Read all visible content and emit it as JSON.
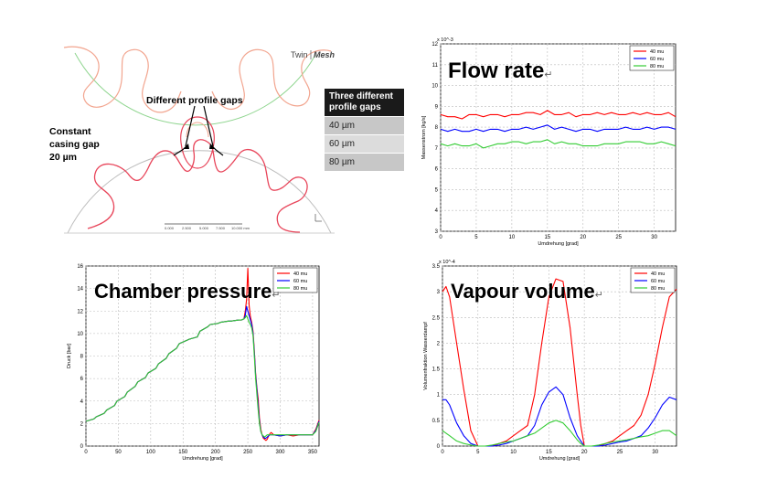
{
  "profile_panel": {
    "logo_twin": "Twin",
    "logo_mesh": "Mesh",
    "label_profile_gaps": "Different profile gaps",
    "label_casing_gap_1": "Constant",
    "label_casing_gap_2": "casing gap",
    "label_casing_gap_3": "20 µm",
    "table_header_1": "Three different",
    "table_header_2": "profile gaps",
    "table_rows": [
      "40 µm",
      "60 µm",
      "80 µm"
    ],
    "scale_labels": [
      "0.000",
      "2.500",
      "5.000",
      "7.500",
      "10.000 mm"
    ]
  },
  "titles": {
    "flow_rate": "Flow rate",
    "chamber_pressure": "Chamber pressure",
    "vapour_volume": "Vapour volume",
    "para_mark": "↵"
  },
  "colors": {
    "s40": "#ff0000",
    "s60": "#0000ff",
    "s80": "#33cc33"
  },
  "chart_data": [
    {
      "id": "flow",
      "type": "line",
      "title": "Flow rate",
      "xlabel": "Umdrehung [grad]",
      "ylabel": "Massenstrom [kg/s]",
      "exponent": "x 10^-3",
      "xlim": [
        0,
        33
      ],
      "ylim": [
        3,
        12
      ],
      "xticks": [
        0,
        5,
        10,
        15,
        20,
        25,
        30
      ],
      "yticks": [
        3,
        4,
        5,
        6,
        7,
        8,
        9,
        10,
        11,
        12
      ],
      "legend": "top-right",
      "series": [
        {
          "name": "40 mu",
          "x": [
            0,
            1,
            2,
            3,
            4,
            5,
            6,
            7,
            8,
            9,
            10,
            11,
            12,
            13,
            14,
            15,
            16,
            17,
            18,
            19,
            20,
            21,
            22,
            23,
            24,
            25,
            26,
            27,
            28,
            29,
            30,
            31,
            32,
            33
          ],
          "y": [
            8.6,
            8.5,
            8.5,
            8.4,
            8.6,
            8.6,
            8.5,
            8.6,
            8.6,
            8.5,
            8.6,
            8.6,
            8.7,
            8.7,
            8.6,
            8.8,
            8.6,
            8.6,
            8.7,
            8.5,
            8.6,
            8.6,
            8.7,
            8.6,
            8.7,
            8.6,
            8.6,
            8.7,
            8.6,
            8.7,
            8.6,
            8.6,
            8.7,
            8.5
          ]
        },
        {
          "name": "60 mu",
          "x": [
            0,
            1,
            2,
            3,
            4,
            5,
            6,
            7,
            8,
            9,
            10,
            11,
            12,
            13,
            14,
            15,
            16,
            17,
            18,
            19,
            20,
            21,
            22,
            23,
            24,
            25,
            26,
            27,
            28,
            29,
            30,
            31,
            32,
            33
          ],
          "y": [
            7.9,
            7.8,
            7.9,
            7.8,
            7.8,
            7.9,
            7.8,
            7.9,
            7.9,
            7.8,
            7.9,
            7.9,
            8.0,
            7.9,
            8.0,
            8.1,
            7.9,
            8.0,
            7.9,
            7.8,
            7.9,
            7.9,
            7.8,
            7.9,
            7.9,
            7.9,
            8.0,
            7.9,
            7.9,
            8.0,
            7.9,
            8.0,
            8.0,
            7.9
          ]
        },
        {
          "name": "80 mu",
          "x": [
            0,
            1,
            2,
            3,
            4,
            5,
            6,
            7,
            8,
            9,
            10,
            11,
            12,
            13,
            14,
            15,
            16,
            17,
            18,
            19,
            20,
            21,
            22,
            23,
            24,
            25,
            26,
            27,
            28,
            29,
            30,
            31,
            32,
            33
          ],
          "y": [
            7.2,
            7.1,
            7.2,
            7.1,
            7.1,
            7.2,
            7.0,
            7.1,
            7.2,
            7.2,
            7.3,
            7.3,
            7.2,
            7.3,
            7.3,
            7.4,
            7.2,
            7.3,
            7.2,
            7.2,
            7.1,
            7.1,
            7.1,
            7.2,
            7.2,
            7.2,
            7.3,
            7.3,
            7.3,
            7.2,
            7.2,
            7.3,
            7.2,
            7.1
          ]
        }
      ]
    },
    {
      "id": "pressure",
      "type": "line",
      "title": "Chamber pressure",
      "xlabel": "Umdrehung [grad]",
      "ylabel": "Druck [bar]",
      "xlim": [
        0,
        360
      ],
      "ylim": [
        0,
        16
      ],
      "xticks": [
        0,
        50,
        100,
        150,
        200,
        250,
        300,
        350
      ],
      "yticks": [
        0,
        2,
        4,
        6,
        8,
        10,
        12,
        14,
        16
      ],
      "legend": "top-right",
      "series": [
        {
          "name": "40 mu",
          "x": [
            0,
            12,
            16,
            28,
            32,
            44,
            48,
            60,
            64,
            76,
            80,
            92,
            96,
            108,
            112,
            124,
            128,
            140,
            144,
            156,
            160,
            172,
            176,
            188,
            192,
            204,
            208,
            220,
            224,
            236,
            240,
            244,
            246,
            248,
            250,
            252,
            254,
            256,
            258,
            260,
            262,
            264,
            266,
            268,
            270,
            272,
            274,
            276,
            278,
            280,
            282,
            284,
            286,
            290,
            300,
            310,
            320,
            330,
            340,
            350,
            355,
            360
          ],
          "y": [
            2.2,
            2.4,
            2.6,
            2.9,
            3.2,
            3.6,
            4.0,
            4.4,
            4.8,
            5.3,
            5.7,
            6.1,
            6.5,
            6.9,
            7.3,
            7.8,
            8.2,
            8.7,
            9.1,
            9.4,
            9.5,
            9.7,
            10.2,
            10.6,
            10.8,
            10.9,
            11.0,
            11.1,
            11.1,
            11.2,
            11.2,
            11.3,
            12.0,
            13.0,
            15.8,
            12.5,
            11.5,
            11.0,
            10.2,
            8.5,
            6.5,
            5.2,
            4.2,
            2.5,
            1.5,
            1.0,
            0.7,
            0.6,
            0.5,
            0.6,
            0.9,
            1.1,
            1.2,
            1.0,
            0.9,
            1.0,
            0.9,
            1.0,
            1.0,
            1.0,
            1.5,
            2.3
          ]
        },
        {
          "name": "60 mu",
          "x": [
            0,
            12,
            16,
            28,
            32,
            44,
            48,
            60,
            64,
            76,
            80,
            92,
            96,
            108,
            112,
            124,
            128,
            140,
            144,
            156,
            160,
            172,
            176,
            188,
            192,
            204,
            208,
            220,
            224,
            236,
            240,
            244,
            246,
            248,
            250,
            252,
            254,
            256,
            258,
            260,
            262,
            264,
            266,
            268,
            270,
            272,
            274,
            276,
            278,
            280,
            282,
            284,
            286,
            290,
            300,
            310,
            320,
            330,
            340,
            350,
            355,
            360
          ],
          "y": [
            2.2,
            2.4,
            2.6,
            2.9,
            3.2,
            3.6,
            4.0,
            4.4,
            4.8,
            5.3,
            5.7,
            6.1,
            6.5,
            6.9,
            7.3,
            7.8,
            8.2,
            8.7,
            9.1,
            9.4,
            9.5,
            9.7,
            10.2,
            10.6,
            10.8,
            10.9,
            11.0,
            11.1,
            11.1,
            11.2,
            11.2,
            11.3,
            11.6,
            12.4,
            12.0,
            11.6,
            11.2,
            10.8,
            10.0,
            8.3,
            6.3,
            5.0,
            3.6,
            2.2,
            1.3,
            1.0,
            0.8,
            0.7,
            0.7,
            0.8,
            0.9,
            1.0,
            1.0,
            1.0,
            0.9,
            1.0,
            1.0,
            1.0,
            1.0,
            1.0,
            1.4,
            2.2
          ]
        },
        {
          "name": "80 mu",
          "x": [
            0,
            12,
            16,
            28,
            32,
            44,
            48,
            60,
            64,
            76,
            80,
            92,
            96,
            108,
            112,
            124,
            128,
            140,
            144,
            156,
            160,
            172,
            176,
            188,
            192,
            204,
            208,
            220,
            224,
            236,
            240,
            244,
            246,
            248,
            250,
            252,
            254,
            256,
            258,
            260,
            262,
            264,
            266,
            268,
            270,
            272,
            274,
            276,
            278,
            280,
            282,
            284,
            286,
            290,
            300,
            310,
            320,
            330,
            340,
            350,
            355,
            360
          ],
          "y": [
            2.2,
            2.4,
            2.6,
            2.9,
            3.2,
            3.6,
            4.0,
            4.4,
            4.8,
            5.3,
            5.7,
            6.1,
            6.5,
            6.9,
            7.3,
            7.8,
            8.2,
            8.7,
            9.1,
            9.4,
            9.5,
            9.7,
            10.2,
            10.6,
            10.8,
            10.9,
            11.0,
            11.1,
            11.1,
            11.2,
            11.2,
            11.3,
            11.4,
            11.6,
            11.3,
            11.0,
            10.8,
            10.5,
            9.8,
            8.0,
            6.0,
            4.6,
            3.2,
            2.0,
            1.3,
            1.0,
            0.9,
            0.8,
            0.9,
            1.0,
            1.0,
            1.0,
            1.0,
            1.0,
            1.0,
            1.0,
            1.0,
            1.0,
            1.0,
            1.0,
            1.3,
            2.1
          ]
        }
      ]
    },
    {
      "id": "vapour",
      "type": "line",
      "title": "Vapour volume",
      "xlabel": "Umdrehung [grad]",
      "ylabel": "Volumenfraktion Wasserdampf",
      "exponent": "x 10^-4",
      "xlim": [
        0,
        33
      ],
      "ylim": [
        0,
        3.5
      ],
      "xticks": [
        0,
        5,
        10,
        15,
        20,
        25,
        30
      ],
      "yticks": [
        0,
        0.5,
        1,
        1.5,
        2,
        2.5,
        3,
        3.5
      ],
      "legend": "top-right",
      "series": [
        {
          "name": "40 mu",
          "x": [
            0,
            0.5,
            1,
            2,
            3,
            4,
            5,
            6,
            7,
            8,
            9,
            10,
            11,
            12,
            13,
            14,
            15,
            16,
            17,
            18,
            19,
            19.5,
            20,
            21,
            22,
            23,
            24,
            25,
            26,
            27,
            28,
            29,
            30,
            31,
            32,
            33
          ],
          "y": [
            3.0,
            3.1,
            2.9,
            2.0,
            1.1,
            0.3,
            0.0,
            0.0,
            0.0,
            0.05,
            0.1,
            0.2,
            0.3,
            0.4,
            1.0,
            2.0,
            2.9,
            3.25,
            3.2,
            2.3,
            1.0,
            0.4,
            0.0,
            0.0,
            0.0,
            0.05,
            0.1,
            0.2,
            0.3,
            0.4,
            0.6,
            1.0,
            1.6,
            2.3,
            2.9,
            3.05
          ]
        },
        {
          "name": "60 mu",
          "x": [
            0,
            0.5,
            1,
            2,
            3,
            4,
            5,
            6,
            7,
            8,
            9,
            10,
            11,
            12,
            13,
            14,
            15,
            16,
            17,
            18,
            19,
            19.5,
            20,
            21,
            22,
            23,
            24,
            25,
            26,
            27,
            28,
            29,
            30,
            31,
            32,
            33
          ],
          "y": [
            0.9,
            0.9,
            0.8,
            0.45,
            0.2,
            0.05,
            0.0,
            0.0,
            0.0,
            0.02,
            0.05,
            0.1,
            0.15,
            0.2,
            0.4,
            0.8,
            1.05,
            1.15,
            1.0,
            0.55,
            0.2,
            0.1,
            0.0,
            0.0,
            0.0,
            0.02,
            0.05,
            0.08,
            0.1,
            0.15,
            0.2,
            0.35,
            0.55,
            0.8,
            0.95,
            0.9
          ]
        },
        {
          "name": "80 mu",
          "x": [
            0,
            0.5,
            1,
            2,
            3,
            4,
            5,
            6,
            7,
            8,
            9,
            10,
            11,
            12,
            13,
            14,
            15,
            16,
            17,
            18,
            19,
            19.5,
            20,
            21,
            22,
            23,
            24,
            25,
            26,
            27,
            28,
            29,
            30,
            31,
            32,
            33
          ],
          "y": [
            0.3,
            0.25,
            0.2,
            0.1,
            0.05,
            0.02,
            0.0,
            0.0,
            0.02,
            0.05,
            0.08,
            0.1,
            0.15,
            0.2,
            0.25,
            0.35,
            0.45,
            0.5,
            0.45,
            0.3,
            0.12,
            0.05,
            0.0,
            0.0,
            0.02,
            0.05,
            0.08,
            0.1,
            0.12,
            0.15,
            0.18,
            0.2,
            0.25,
            0.3,
            0.3,
            0.2
          ]
        }
      ]
    }
  ]
}
